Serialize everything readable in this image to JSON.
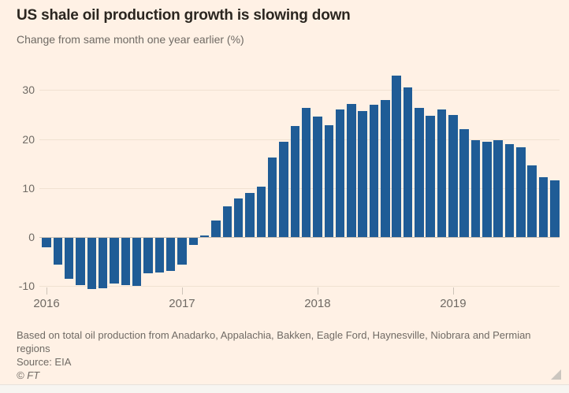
{
  "header": {
    "title": "US shale oil production growth is slowing down",
    "subtitle": "Change from same month one year earlier (%)"
  },
  "chart_data": {
    "type": "bar",
    "title": "US shale oil production growth is slowing down",
    "ylabel": "Change from same month one year earlier (%)",
    "xlabel": "",
    "legend": "none",
    "grid": "horizontal",
    "ylim": [
      -12,
      35
    ],
    "yticks": [
      30,
      20,
      10,
      0,
      -10
    ],
    "xticks": [
      {
        "label": "2016",
        "month_index": 0
      },
      {
        "label": "2017",
        "month_index": 12
      },
      {
        "label": "2018",
        "month_index": 24
      },
      {
        "label": "2019",
        "month_index": 36
      }
    ],
    "bar_color": "#1F5C96",
    "x": [
      "Jan 2016",
      "Feb 2016",
      "Mar 2016",
      "Apr 2016",
      "May 2016",
      "Jun 2016",
      "Jul 2016",
      "Aug 2016",
      "Sep 2016",
      "Oct 2016",
      "Nov 2016",
      "Dec 2016",
      "Jan 2017",
      "Feb 2017",
      "Mar 2017",
      "Apr 2017",
      "May 2017",
      "Jun 2017",
      "Jul 2017",
      "Aug 2017",
      "Sep 2017",
      "Oct 2017",
      "Nov 2017",
      "Dec 2017",
      "Jan 2018",
      "Feb 2018",
      "Mar 2018",
      "Apr 2018",
      "May 2018",
      "Jun 2018",
      "Jul 2018",
      "Aug 2018",
      "Sep 2018",
      "Oct 2018",
      "Nov 2018",
      "Dec 2018",
      "Jan 2019",
      "Feb 2019",
      "Mar 2019",
      "Apr 2019",
      "May 2019",
      "Jun 2019",
      "Jul 2019",
      "Aug 2019",
      "Sep 2019",
      "Oct 2019"
    ],
    "values": [
      -2.0,
      -5.5,
      -8.3,
      -9.7,
      -10.5,
      -10.3,
      -9.4,
      -9.6,
      -9.8,
      -7.2,
      -7.0,
      -6.8,
      -5.5,
      -1.4,
      0.3,
      3.4,
      6.2,
      7.9,
      9.0,
      10.3,
      16.3,
      19.4,
      22.6,
      26.4,
      24.6,
      22.8,
      26.0,
      27.1,
      25.7,
      27.0,
      27.9,
      32.9,
      30.6,
      26.3,
      24.8,
      26.0,
      25.0,
      22.1,
      19.8,
      19.4,
      19.8,
      18.9,
      18.3,
      14.7,
      12.2,
      11.6
    ]
  },
  "footer": {
    "note": "Based on total oil production from Anadarko, Appalachia, Bakken, Eagle Ford, Haynesville, Niobrara and Permian regions",
    "source": "Source: EIA",
    "copyright": "© FT"
  },
  "colors": {
    "background": "#FFF1E5",
    "bar": "#1F5C96",
    "gridline": "#F0E1D1",
    "zero_line": "#C9BFB4",
    "title_text": "#2B2620",
    "muted_text": "#6F6A64"
  }
}
